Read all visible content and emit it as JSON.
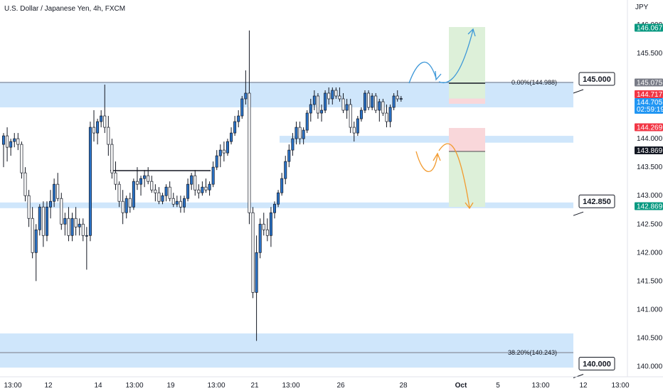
{
  "chart_data": {
    "type": "candlestick",
    "title": "U.S. Dollar / Japanese Yen, 4h, FXCM",
    "currency": "JPY",
    "ylim": [
      139.95,
      146.55
    ],
    "y_ticks": [
      "146.000",
      "145.500",
      "145.000",
      "144.500",
      "144.000",
      "143.500",
      "143.000",
      "142.500",
      "142.000",
      "141.500",
      "141.000",
      "140.500",
      "140.000"
    ],
    "x_ticks": [
      "13:00",
      "12",
      "14",
      "13:00",
      "19",
      "13:00",
      "21",
      "13:00",
      "26",
      "28",
      "Oct",
      "5",
      "13:00",
      "12",
      "13:00"
    ],
    "colors": {
      "up": "#2a73c8",
      "down": "#ffffff",
      "wick": "#131722",
      "zone": "#cfe6fb",
      "badge_green": "#089981",
      "badge_red": "#f23645",
      "badge_blue": "#2196f3",
      "badge_black": "#131722",
      "arrow_blue": "#3c97d8",
      "arrow_orange": "#f29a2e",
      "tp_fill": "#ddf0d9",
      "sl_fill": "#f9d7da"
    },
    "zones": [
      {
        "name": "resistance-zone",
        "top": 145.0,
        "bottom": 144.55
      },
      {
        "name": "support-zone-small",
        "top": 144.05,
        "bottom": 143.93
      },
      {
        "name": "support-zone-mid",
        "top": 142.88,
        "bottom": 142.78
      },
      {
        "name": "support-zone-bottom",
        "top": 140.58,
        "bottom": 139.98
      }
    ],
    "horizontal_lines": [
      {
        "value": 144.988,
        "label": "0.00%(144.988)"
      },
      {
        "value": 140.243,
        "label": "38.20%(140.243)"
      }
    ],
    "callouts": [
      {
        "value": 145.0,
        "label": "145.000"
      },
      {
        "value": 142.85,
        "label": "142.850"
      },
      {
        "value": 140.0,
        "label": "140.000"
      }
    ],
    "price_badges": [
      {
        "value": 146.067,
        "label": "146.067",
        "color": "green"
      },
      {
        "value": 145.075,
        "label": "145.075",
        "color": "gray"
      },
      {
        "value": 144.717,
        "label": "144.717",
        "color": "red"
      },
      {
        "value": 144.705,
        "label": "144.705",
        "sub": "02:59:19",
        "color": "blue"
      },
      {
        "value": 144.269,
        "label": "144.269",
        "color": "red"
      },
      {
        "value": 143.869,
        "label": "143.869",
        "color": "black"
      },
      {
        "value": 142.869,
        "label": "142.869",
        "color": "green"
      }
    ],
    "candles": [
      [
        143.9,
        144.1,
        143.5,
        144.05
      ],
      [
        144.05,
        144.2,
        143.6,
        143.85
      ],
      [
        143.85,
        144.0,
        143.7,
        143.95
      ],
      [
        143.95,
        144.1,
        143.85,
        144.0
      ],
      [
        144.0,
        144.1,
        143.8,
        143.9
      ],
      [
        143.9,
        143.95,
        143.3,
        143.4
      ],
      [
        143.4,
        143.5,
        142.9,
        143.0
      ],
      [
        143.0,
        143.1,
        142.45,
        142.6
      ],
      [
        142.6,
        142.8,
        141.9,
        142.0
      ],
      [
        142.0,
        142.5,
        141.5,
        142.4
      ],
      [
        142.4,
        142.85,
        142.3,
        142.8
      ],
      [
        142.8,
        142.9,
        142.1,
        142.3
      ],
      [
        142.3,
        142.9,
        142.2,
        142.8
      ],
      [
        142.8,
        143.1,
        142.6,
        142.9
      ],
      [
        142.9,
        143.3,
        142.8,
        143.2
      ],
      [
        143.2,
        143.4,
        142.9,
        142.95
      ],
      [
        142.95,
        143.05,
        142.4,
        142.5
      ],
      [
        142.5,
        142.7,
        142.3,
        142.6
      ],
      [
        142.6,
        142.8,
        142.2,
        142.3
      ],
      [
        142.3,
        142.7,
        142.2,
        142.6
      ],
      [
        142.6,
        142.8,
        142.3,
        142.45
      ],
      [
        142.45,
        142.6,
        142.3,
        142.5
      ],
      [
        142.5,
        142.6,
        142.2,
        142.3
      ],
      [
        142.3,
        142.45,
        141.7,
        142.3
      ],
      [
        142.3,
        144.3,
        142.2,
        144.2
      ],
      [
        144.2,
        144.5,
        143.95,
        144.1
      ],
      [
        144.1,
        144.35,
        143.9,
        144.3
      ],
      [
        144.3,
        144.5,
        144.2,
        144.4
      ],
      [
        144.4,
        144.95,
        144.1,
        144.2
      ],
      [
        144.2,
        144.4,
        143.7,
        143.9
      ],
      [
        143.9,
        144.0,
        143.3,
        143.4
      ],
      [
        143.4,
        143.6,
        143.1,
        143.2
      ],
      [
        143.2,
        143.25,
        142.8,
        142.9
      ],
      [
        142.9,
        143.1,
        142.5,
        142.7
      ],
      [
        142.7,
        143.0,
        142.6,
        142.95
      ],
      [
        142.95,
        143.05,
        142.7,
        142.8
      ],
      [
        142.8,
        143.3,
        142.75,
        143.25
      ],
      [
        143.25,
        143.5,
        143.1,
        143.2
      ],
      [
        143.2,
        143.35,
        143.0,
        143.3
      ],
      [
        143.3,
        143.45,
        143.15,
        143.35
      ],
      [
        143.35,
        143.5,
        143.2,
        143.25
      ],
      [
        143.25,
        143.35,
        143.05,
        143.1
      ],
      [
        143.1,
        143.2,
        142.9,
        143.05
      ],
      [
        143.05,
        143.15,
        142.85,
        142.9
      ],
      [
        142.9,
        143.05,
        142.85,
        143.0
      ],
      [
        143.0,
        143.2,
        142.9,
        143.15
      ],
      [
        143.15,
        143.25,
        142.9,
        142.95
      ],
      [
        142.95,
        143.05,
        142.8,
        142.85
      ],
      [
        142.85,
        143.0,
        142.8,
        142.9
      ],
      [
        142.9,
        143.0,
        142.7,
        142.8
      ],
      [
        142.8,
        143.0,
        142.7,
        142.95
      ],
      [
        142.95,
        143.3,
        142.9,
        143.2
      ],
      [
        143.2,
        143.4,
        143.1,
        143.35
      ],
      [
        143.35,
        143.45,
        143.0,
        143.1
      ],
      [
        143.1,
        143.2,
        142.95,
        143.05
      ],
      [
        143.05,
        143.25,
        143.0,
        143.15
      ],
      [
        143.15,
        143.3,
        143.05,
        143.1
      ],
      [
        143.1,
        143.25,
        143.0,
        143.2
      ],
      [
        143.2,
        143.6,
        143.15,
        143.5
      ],
      [
        143.5,
        143.8,
        143.45,
        143.7
      ],
      [
        143.7,
        143.9,
        143.5,
        143.8
      ],
      [
        143.8,
        143.95,
        143.6,
        143.75
      ],
      [
        143.75,
        144.0,
        143.7,
        143.95
      ],
      [
        143.95,
        144.2,
        143.9,
        144.1
      ],
      [
        144.1,
        144.4,
        144.05,
        144.3
      ],
      [
        144.3,
        144.5,
        144.2,
        144.4
      ],
      [
        144.4,
        144.75,
        144.35,
        144.7
      ],
      [
        144.7,
        145.2,
        144.6,
        144.8
      ],
      [
        144.8,
        145.9,
        142.5,
        142.7
      ],
      [
        142.7,
        142.8,
        141.2,
        141.3
      ],
      [
        141.3,
        142.3,
        140.45,
        142.0
      ],
      [
        142.0,
        142.6,
        141.9,
        142.5
      ],
      [
        142.5,
        142.7,
        142.3,
        142.4
      ],
      [
        142.4,
        142.6,
        142.2,
        142.3
      ],
      [
        142.3,
        142.8,
        142.1,
        142.7
      ],
      [
        142.7,
        142.9,
        142.6,
        142.85
      ],
      [
        142.85,
        143.1,
        142.8,
        143.05
      ],
      [
        143.05,
        143.4,
        143.0,
        143.3
      ],
      [
        143.3,
        143.7,
        143.2,
        143.6
      ],
      [
        143.6,
        143.9,
        143.5,
        143.8
      ],
      [
        143.8,
        144.1,
        143.7,
        144.0
      ],
      [
        144.0,
        144.3,
        143.9,
        144.2
      ],
      [
        144.2,
        144.3,
        143.9,
        144.0
      ],
      [
        144.0,
        144.2,
        143.9,
        144.15
      ],
      [
        144.15,
        144.5,
        144.1,
        144.45
      ],
      [
        144.45,
        144.7,
        144.3,
        144.6
      ],
      [
        144.6,
        144.85,
        144.5,
        144.75
      ],
      [
        144.75,
        144.8,
        144.35,
        144.45
      ],
      [
        144.45,
        144.6,
        144.3,
        144.5
      ],
      [
        144.5,
        144.85,
        144.45,
        144.8
      ],
      [
        144.8,
        144.9,
        144.6,
        144.7
      ],
      [
        144.7,
        144.9,
        144.6,
        144.85
      ],
      [
        144.85,
        144.9,
        144.7,
        144.75
      ],
      [
        144.75,
        144.9,
        144.65,
        144.7
      ],
      [
        144.7,
        144.8,
        144.45,
        144.5
      ],
      [
        144.5,
        144.7,
        144.35,
        144.6
      ],
      [
        144.6,
        144.7,
        144.1,
        144.2
      ],
      [
        144.2,
        144.3,
        143.95,
        144.1
      ],
      [
        144.1,
        144.4,
        144.05,
        144.35
      ],
      [
        144.35,
        144.55,
        144.3,
        144.5
      ],
      [
        144.5,
        144.85,
        144.45,
        144.8
      ],
      [
        144.8,
        144.85,
        144.5,
        144.55
      ],
      [
        144.55,
        144.8,
        144.5,
        144.75
      ],
      [
        144.75,
        144.8,
        144.45,
        144.5
      ],
      [
        144.5,
        144.7,
        144.3,
        144.65
      ],
      [
        144.65,
        144.7,
        144.4,
        144.45
      ],
      [
        144.45,
        144.6,
        144.2,
        144.3
      ],
      [
        144.3,
        144.6,
        144.2,
        144.55
      ],
      [
        144.55,
        144.8,
        144.5,
        144.75
      ],
      [
        144.75,
        144.85,
        144.65,
        144.7
      ],
      [
        144.7,
        144.75,
        144.65,
        144.705
      ]
    ]
  }
}
